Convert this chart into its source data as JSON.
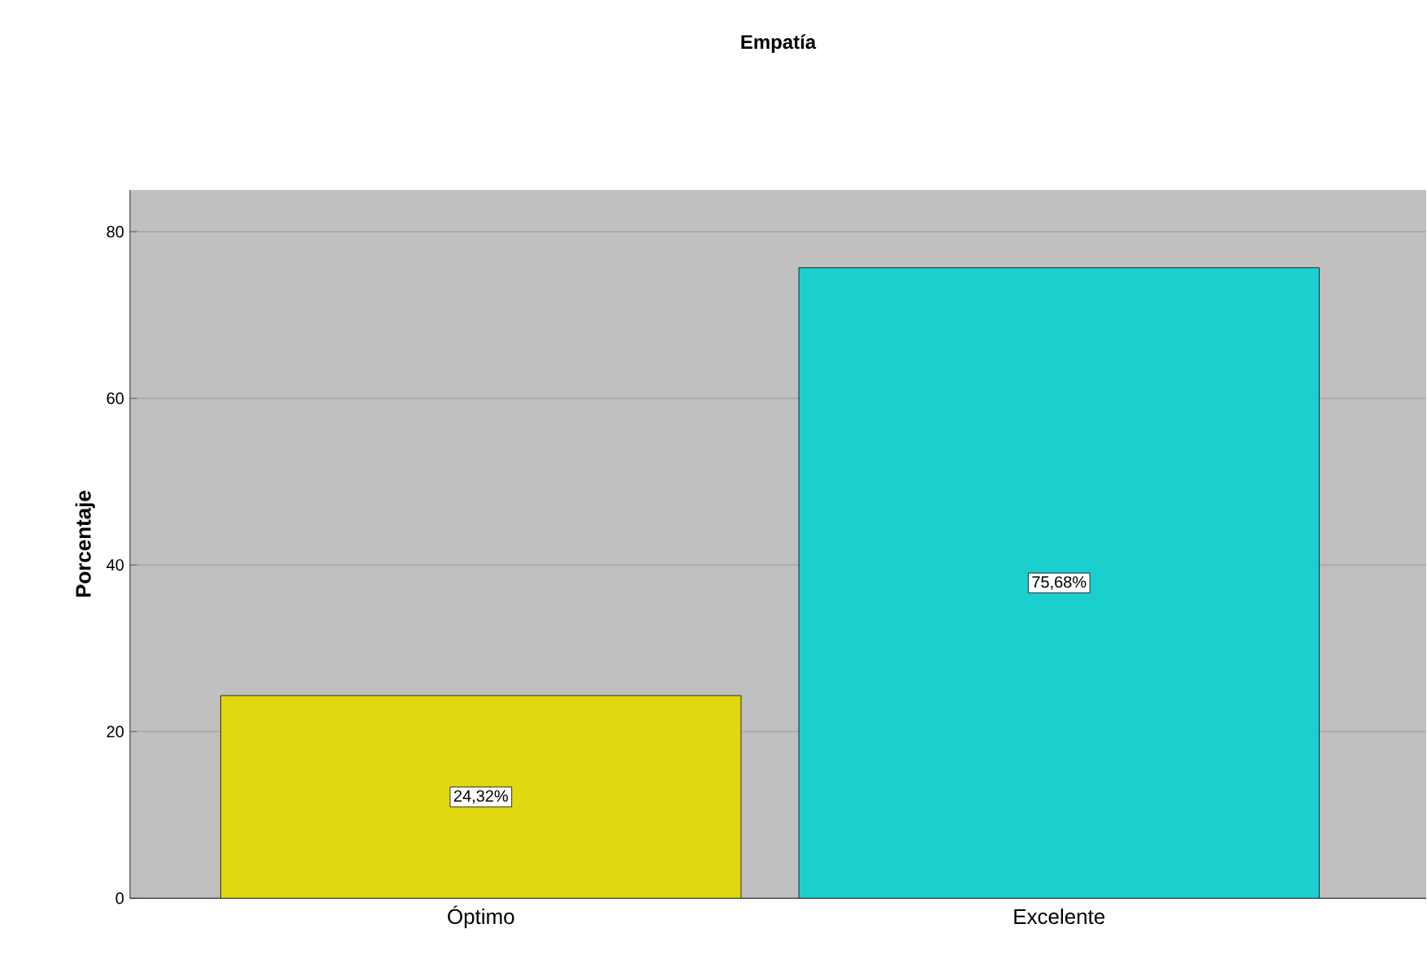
{
  "chart_data": {
    "type": "bar",
    "title": "Empatía",
    "ylabel": "Porcentaje",
    "categories": [
      "Óptimo",
      "Excelente"
    ],
    "values": [
      24.32,
      75.68
    ],
    "value_labels": [
      "24,32%",
      "75,68%"
    ],
    "colors": [
      "#e2d80f",
      "#1ccfcf"
    ],
    "ylim": [
      0,
      85
    ],
    "yticks": [
      0,
      20,
      40,
      60,
      80
    ],
    "grid": "y"
  }
}
